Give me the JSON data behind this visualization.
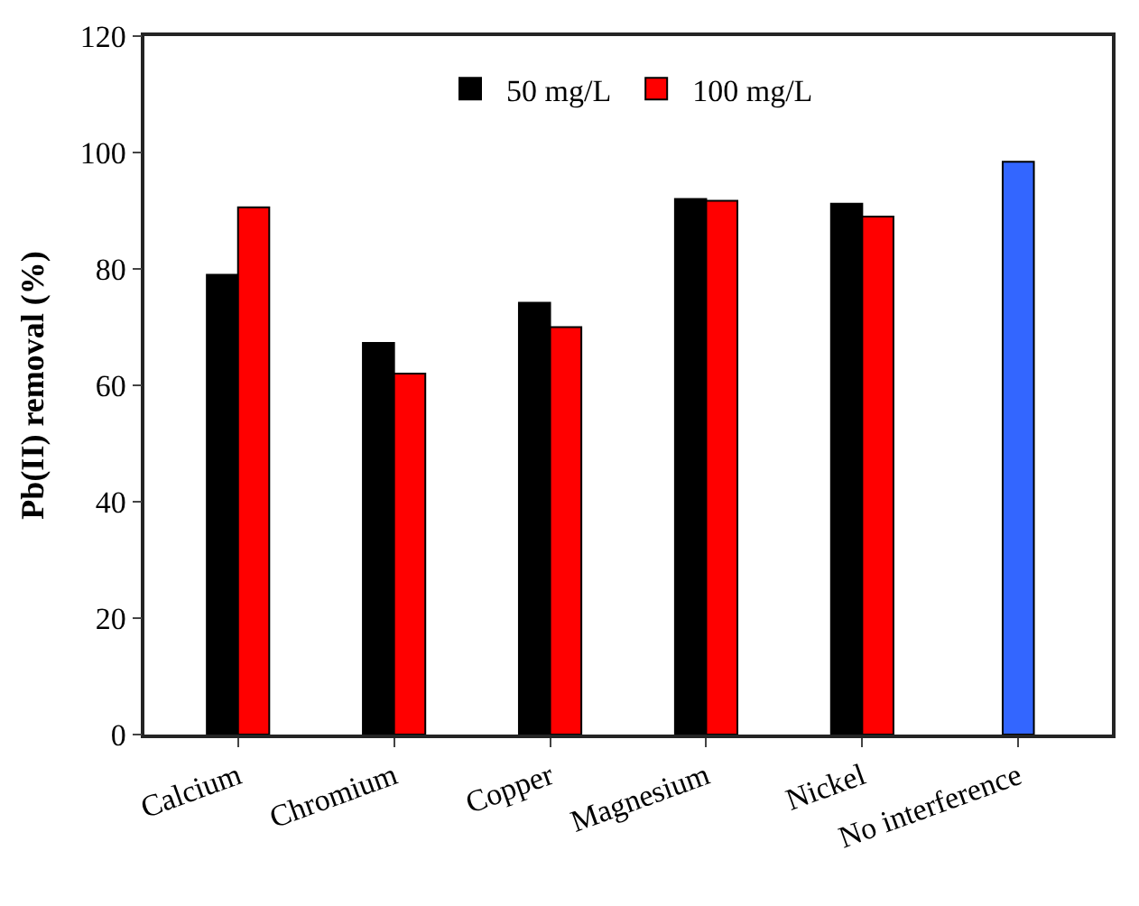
{
  "chart_data": {
    "type": "bar",
    "ylabel": "Pb(II) removal (%)",
    "categories": [
      "Calcium",
      "Chromium",
      "Copper",
      "Magnesium",
      "Nickel",
      "No interference"
    ],
    "series": [
      {
        "name": "50 mg/L",
        "color": "#000000",
        "values": [
          79,
          67.3,
          74.2,
          92,
          91.2,
          null
        ]
      },
      {
        "name": "100 mg/L",
        "color": "#ff0000",
        "values": [
          90.6,
          62,
          70,
          91.7,
          89,
          null
        ]
      },
      {
        "color": "#3366ff",
        "values": [
          null,
          null,
          null,
          null,
          null,
          98.4
        ]
      }
    ],
    "ylim": [
      0,
      120
    ],
    "yticks": [
      0,
      20,
      40,
      60,
      80,
      100,
      120
    ],
    "grid": false,
    "legend": "top"
  }
}
